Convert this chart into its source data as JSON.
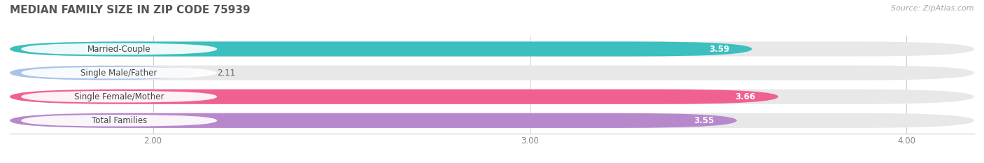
{
  "title": "MEDIAN FAMILY SIZE IN ZIP CODE 75939",
  "source": "Source: ZipAtlas.com",
  "categories": [
    "Married-Couple",
    "Single Male/Father",
    "Single Female/Mother",
    "Total Families"
  ],
  "values": [
    3.59,
    2.11,
    3.66,
    3.55
  ],
  "bar_colors": [
    "#3bbfbf",
    "#aac4e8",
    "#f06090",
    "#b888cc"
  ],
  "bar_bg_color": "#e8e8e8",
  "background_color": "#ffffff",
  "xmin": 1.62,
  "xmax": 4.18,
  "xticks": [
    2.0,
    3.0,
    4.0
  ],
  "xtick_labels": [
    "2.00",
    "3.00",
    "4.00"
  ],
  "title_fontsize": 11,
  "label_fontsize": 8.5,
  "value_fontsize": 8.5,
  "bar_height": 0.62,
  "source_fontsize": 8
}
